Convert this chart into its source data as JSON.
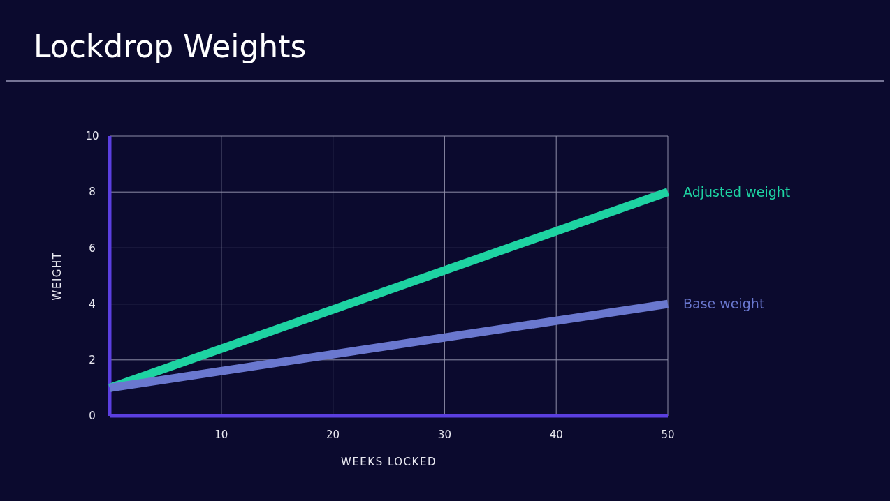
{
  "chart_data": {
    "type": "line",
    "title": "Lockdrop Weights",
    "xlabel": "WEEKS LOCKED",
    "ylabel": "WEIGHT",
    "x": [
      0,
      50
    ],
    "series": [
      {
        "name": "Adjusted weight",
        "color": "#1ed3a2",
        "values": [
          1,
          8
        ]
      },
      {
        "name": "Base weight",
        "color": "#6a78cf",
        "values": [
          1,
          4
        ]
      }
    ],
    "xlim": [
      0,
      50
    ],
    "xticks": [
      10,
      20,
      30,
      40,
      50
    ],
    "ylim": [
      0,
      10
    ],
    "yticks": [
      0,
      2,
      4,
      6,
      8,
      10
    ],
    "grid": true,
    "legend": false,
    "marker": "none",
    "line_style": "solid"
  }
}
